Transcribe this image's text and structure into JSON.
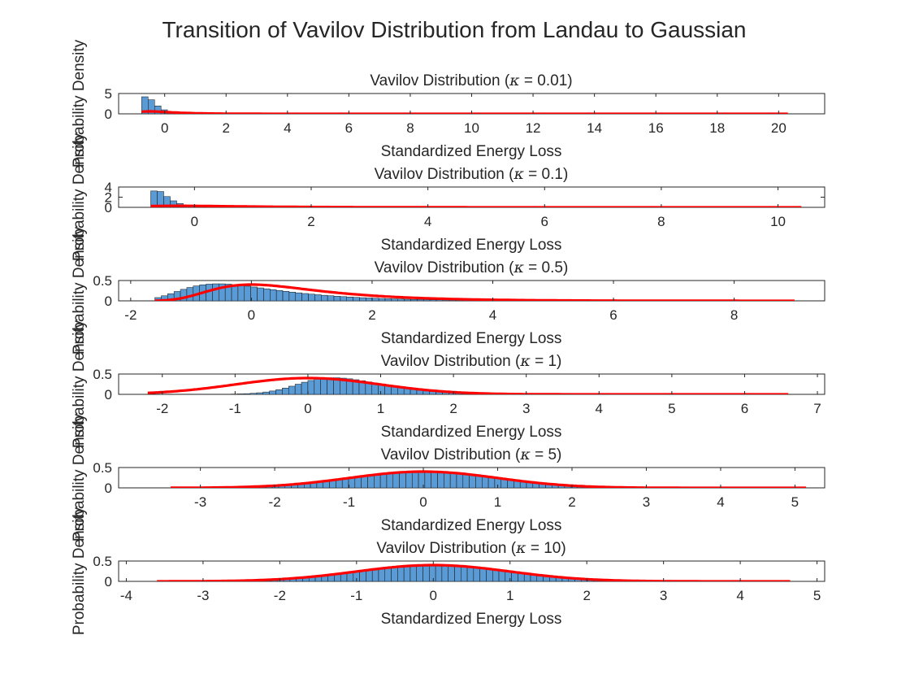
{
  "figure": {
    "title": "Transition of Vavilov Distribution from Landau to Gaussian"
  },
  "colors": {
    "bar_fill": "#5b9bd5",
    "bar_edge": "#111111",
    "curve": "#ff0000",
    "axis": "#262626",
    "text": "#262626"
  },
  "chart_data": [
    {
      "type": "bar",
      "title": "Vavilov Distribution (κ = 0.01)",
      "title_pre": "Vavilov Distribution (",
      "kappa": "κ",
      "title_post": " = 0.01)",
      "xlabel": "Standardized Energy Loss",
      "ylabel": "Probability Density",
      "xlim": [
        -1.5,
        21.5
      ],
      "ylim": [
        0,
        5
      ],
      "xticks": [
        0,
        2,
        4,
        6,
        8,
        10,
        12,
        14,
        16,
        18,
        20
      ],
      "yticks": [
        0,
        5
      ],
      "hist": {
        "start": -0.75,
        "end": 20.3,
        "bins": 100,
        "shape": "landau",
        "peak_bin_value": 4.3,
        "loc": -0.6,
        "scale": 0.15
      },
      "curve": {
        "shape": "landau",
        "loc": -0.5,
        "scale": 0.4,
        "peak": 0.6
      }
    },
    {
      "type": "bar",
      "title": "Vavilov Distribution (κ = 0.1)",
      "title_pre": "Vavilov Distribution (",
      "kappa": "κ",
      "title_post": " = 0.1)",
      "xlabel": "Standardized Energy Loss",
      "ylabel": "Probability Density",
      "xlim": [
        -1.3,
        10.8
      ],
      "ylim": [
        0,
        4
      ],
      "xticks": [
        0,
        2,
        4,
        6,
        8,
        10
      ],
      "yticks": [
        0,
        2,
        4
      ],
      "hist": {
        "start": -0.75,
        "end": 10.4,
        "bins": 100,
        "shape": "landau",
        "peak_bin_value": 3.4,
        "loc": -0.65,
        "scale": 0.1
      },
      "curve": {
        "shape": "landau",
        "loc": -0.3,
        "scale": 0.6,
        "peak": 0.3
      }
    },
    {
      "type": "bar",
      "title": "Vavilov Distribution (κ = 0.5)",
      "title_pre": "Vavilov Distribution (",
      "kappa": "κ",
      "title_post": " = 0.5)",
      "xlabel": "Standardized Energy Loss",
      "ylabel": "Probability Density",
      "xlim": [
        -2.2,
        9.5
      ],
      "ylim": [
        0,
        0.5
      ],
      "xticks": [
        -2,
        0,
        2,
        4,
        6,
        8
      ],
      "yticks": [
        0,
        0.5
      ],
      "hist": {
        "start": -1.6,
        "end": 9.0,
        "bins": 100,
        "shape": "landau",
        "loc": -0.55,
        "scale": 0.55,
        "peak_bin_value": 0.42
      },
      "curve": {
        "shape": "landau",
        "loc": 0.0,
        "scale": 0.62,
        "peak": 0.4
      }
    },
    {
      "type": "bar",
      "title": "Vavilov Distribution (κ = 1)",
      "title_pre": "Vavilov Distribution (",
      "kappa": "κ",
      "title_post": " = 1)",
      "xlabel": "Standardized Energy Loss",
      "ylabel": "Probability Density",
      "xlim": [
        -2.6,
        7.1
      ],
      "ylim": [
        0,
        0.5
      ],
      "xticks": [
        -2,
        -1,
        0,
        1,
        2,
        3,
        4,
        5,
        6,
        7
      ],
      "yticks": [
        0,
        0.5
      ],
      "hist": {
        "start": -2.2,
        "end": 6.6,
        "bins": 100,
        "shape": "skewnorm",
        "loc": -0.1,
        "scale": 0.9,
        "skew": 2.2,
        "peak_bin_value": 0.41
      },
      "curve": {
        "shape": "gauss",
        "mean": 0.0,
        "sd": 1.0,
        "peak": 0.4
      }
    },
    {
      "type": "bar",
      "title": "Vavilov Distribution (κ = 5)",
      "title_pre": "Vavilov Distribution (",
      "kappa": "κ",
      "title_post": " = 5)",
      "xlabel": "Standardized Energy Loss",
      "ylabel": "Probability Density",
      "xlim": [
        -4.1,
        5.4
      ],
      "ylim": [
        0,
        0.5
      ],
      "xticks": [
        -3,
        -2,
        -1,
        0,
        1,
        2,
        3,
        4,
        5
      ],
      "yticks": [
        0,
        0.5
      ],
      "hist": {
        "start": -3.4,
        "end": 5.15,
        "bins": 100,
        "shape": "gauss",
        "mean": 0.0,
        "sd": 1.0,
        "peak_bin_value": 0.4
      },
      "curve": {
        "shape": "gauss",
        "mean": 0.0,
        "sd": 1.0,
        "peak": 0.4
      }
    },
    {
      "type": "bar",
      "title": "Vavilov Distribution (κ = 10)",
      "title_pre": "Vavilov Distribution (",
      "kappa": "κ",
      "title_post": " = 10)",
      "xlabel": "Standardized Energy Loss",
      "ylabel": "Probability Density",
      "xlim": [
        -4.1,
        5.1
      ],
      "ylim": [
        0,
        0.5
      ],
      "xticks": [
        -4,
        -3,
        -2,
        -1,
        0,
        1,
        2,
        3,
        4,
        5
      ],
      "yticks": [
        0,
        0.5
      ],
      "hist": {
        "start": -3.6,
        "end": 4.65,
        "bins": 100,
        "shape": "gauss",
        "mean": 0.0,
        "sd": 1.0,
        "peak_bin_value": 0.4
      },
      "curve": {
        "shape": "gauss",
        "mean": 0.0,
        "sd": 1.0,
        "peak": 0.4
      }
    }
  ]
}
